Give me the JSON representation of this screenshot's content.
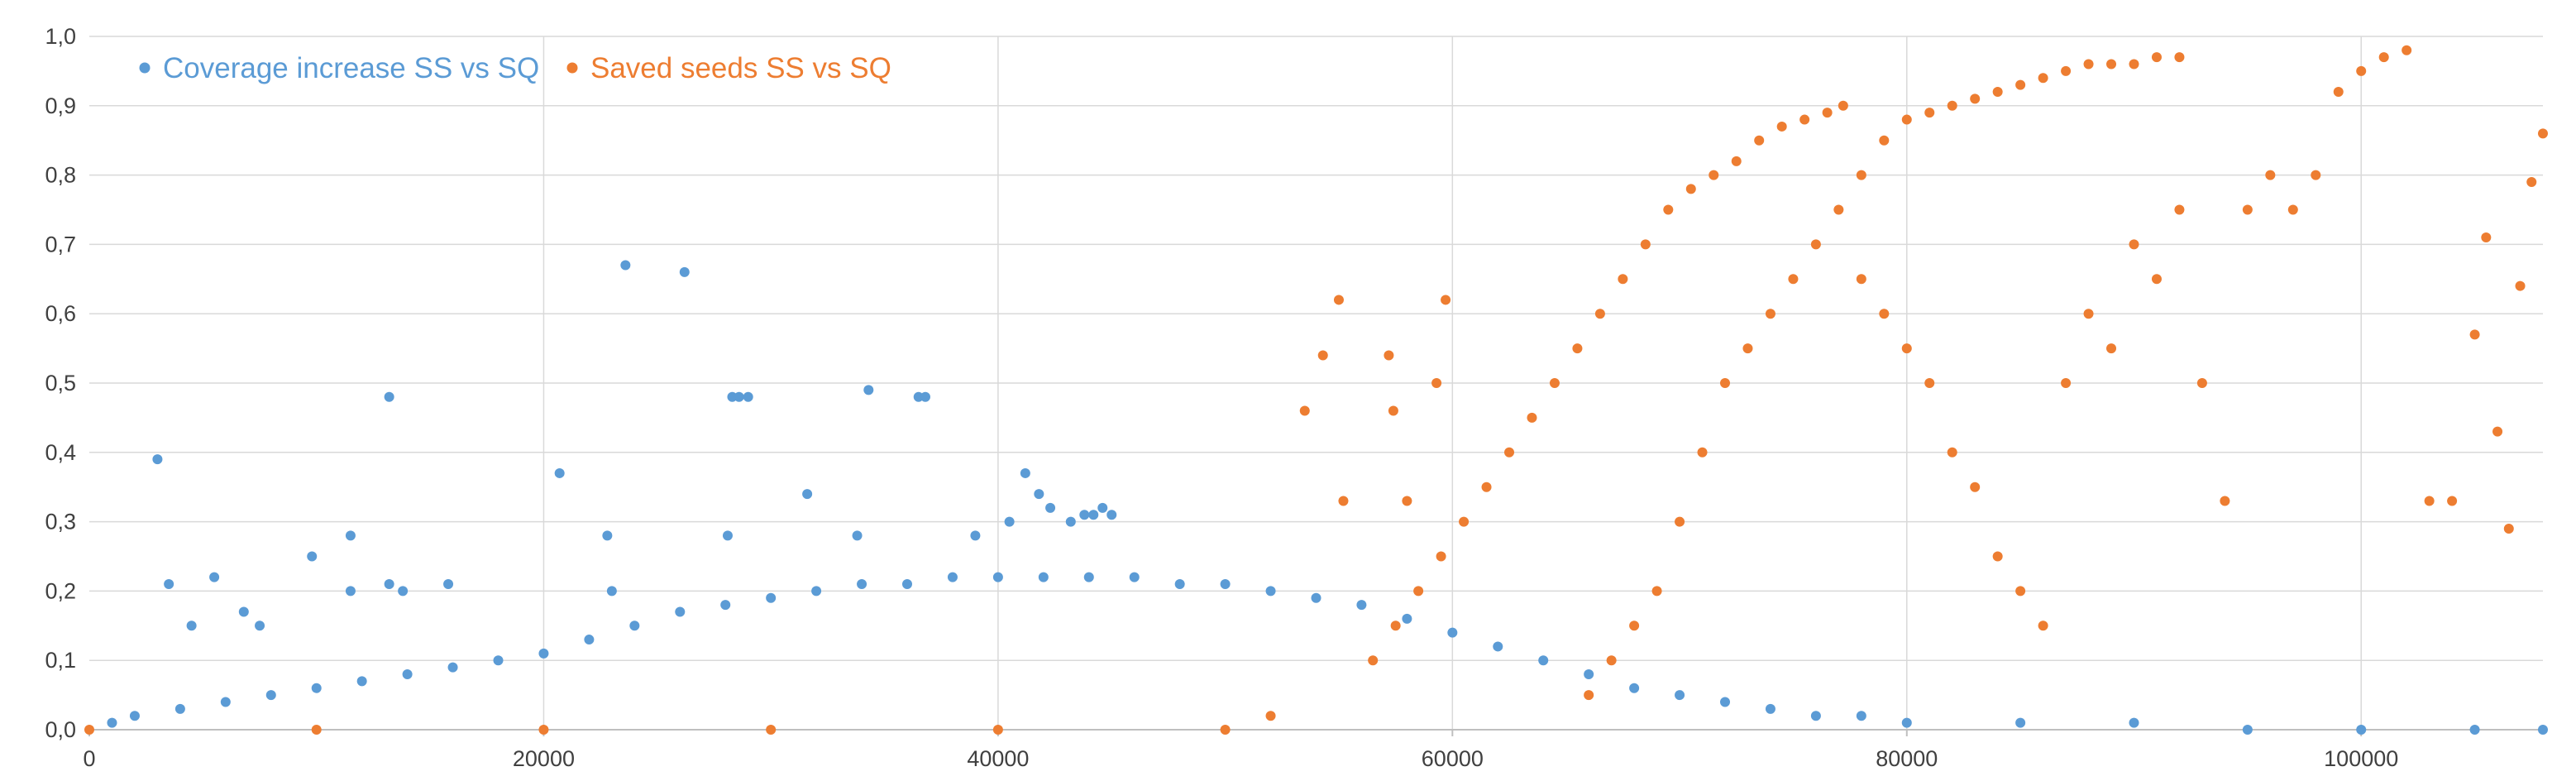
{
  "chart_data": {
    "type": "scatter",
    "title": "",
    "xlabel": "",
    "ylabel": "",
    "xlim": [
      0,
      108000
    ],
    "ylim": [
      0,
      1
    ],
    "grid": true,
    "legend_position": "top-left",
    "x_ticks": [
      {
        "value": 0,
        "label": "0"
      },
      {
        "value": 20000,
        "label": "20000"
      },
      {
        "value": 40000,
        "label": "40000"
      },
      {
        "value": 60000,
        "label": "60000"
      },
      {
        "value": 80000,
        "label": "80000"
      },
      {
        "value": 100000,
        "label": "100000"
      }
    ],
    "y_ticks": [
      {
        "value": 0.0,
        "label": "0,0"
      },
      {
        "value": 0.1,
        "label": "0,1"
      },
      {
        "value": 0.2,
        "label": "0,2"
      },
      {
        "value": 0.3,
        "label": "0,3"
      },
      {
        "value": 0.4,
        "label": "0,4"
      },
      {
        "value": 0.5,
        "label": "0,5"
      },
      {
        "value": 0.6,
        "label": "0,6"
      },
      {
        "value": 0.7,
        "label": "0,7"
      },
      {
        "value": 0.8,
        "label": "0,8"
      },
      {
        "value": 0.9,
        "label": "0,9"
      },
      {
        "value": 1.0,
        "label": "1,0"
      }
    ],
    "series": [
      {
        "name": "Coverage increase SS vs SQ",
        "color": "#5B9BD5",
        "points": [
          [
            3000,
            0.39
          ],
          [
            3500,
            0.21
          ],
          [
            4500,
            0.15
          ],
          [
            5500,
            0.22
          ],
          [
            6800,
            0.17
          ],
          [
            7500,
            0.15
          ],
          [
            9800,
            0.25
          ],
          [
            11500,
            0.28
          ],
          [
            11500,
            0.2
          ],
          [
            13200,
            0.48
          ],
          [
            13200,
            0.21
          ],
          [
            13800,
            0.2
          ],
          [
            15800,
            0.21
          ],
          [
            20700,
            0.37
          ],
          [
            22800,
            0.28
          ],
          [
            23000,
            0.2
          ],
          [
            23600,
            0.67
          ],
          [
            26200,
            0.66
          ],
          [
            28100,
            0.28
          ],
          [
            28300,
            0.48
          ],
          [
            28600,
            0.48
          ],
          [
            29000,
            0.48
          ],
          [
            31600,
            0.34
          ],
          [
            33800,
            0.28
          ],
          [
            34300,
            0.49
          ],
          [
            36500,
            0.48
          ],
          [
            36800,
            0.48
          ],
          [
            39000,
            0.28
          ],
          [
            40500,
            0.3
          ],
          [
            41200,
            0.37
          ],
          [
            41800,
            0.34
          ],
          [
            42300,
            0.32
          ],
          [
            43200,
            0.3
          ],
          [
            43800,
            0.31
          ],
          [
            44200,
            0.31
          ],
          [
            44600,
            0.32
          ],
          [
            45000,
            0.31
          ],
          [
            1000,
            0.01
          ],
          [
            2000,
            0.02
          ],
          [
            4000,
            0.03
          ],
          [
            6000,
            0.04
          ],
          [
            8000,
            0.05
          ],
          [
            10000,
            0.06
          ],
          [
            12000,
            0.07
          ],
          [
            14000,
            0.08
          ],
          [
            16000,
            0.09
          ],
          [
            18000,
            0.1
          ],
          [
            20000,
            0.11
          ],
          [
            22000,
            0.13
          ],
          [
            24000,
            0.15
          ],
          [
            26000,
            0.17
          ],
          [
            28000,
            0.18
          ],
          [
            30000,
            0.19
          ],
          [
            32000,
            0.2
          ],
          [
            34000,
            0.21
          ],
          [
            36000,
            0.21
          ],
          [
            38000,
            0.22
          ],
          [
            40000,
            0.22
          ],
          [
            42000,
            0.22
          ],
          [
            44000,
            0.22
          ],
          [
            46000,
            0.22
          ],
          [
            48000,
            0.21
          ],
          [
            50000,
            0.21
          ],
          [
            52000,
            0.2
          ],
          [
            54000,
            0.19
          ],
          [
            56000,
            0.18
          ],
          [
            58000,
            0.16
          ],
          [
            60000,
            0.14
          ],
          [
            62000,
            0.12
          ],
          [
            64000,
            0.1
          ],
          [
            66000,
            0.08
          ],
          [
            68000,
            0.06
          ],
          [
            70000,
            0.05
          ],
          [
            72000,
            0.04
          ],
          [
            74000,
            0.03
          ],
          [
            76000,
            0.02
          ],
          [
            78000,
            0.02
          ],
          [
            80000,
            0.01
          ],
          [
            85000,
            0.01
          ],
          [
            90000,
            0.01
          ],
          [
            95000,
            0.0
          ],
          [
            100000,
            0.0
          ],
          [
            105000,
            0.0
          ],
          [
            108000,
            0.0
          ]
        ]
      },
      {
        "name": "Saved seeds SS vs SQ",
        "color": "#ED7D31",
        "points": [
          [
            0,
            0.0
          ],
          [
            10000,
            0.0
          ],
          [
            20000,
            0.0
          ],
          [
            30000,
            0.0
          ],
          [
            40000,
            0.0
          ],
          [
            50000,
            0.0
          ],
          [
            52000,
            0.02
          ],
          [
            53500,
            0.46
          ],
          [
            54300,
            0.54
          ],
          [
            55000,
            0.62
          ],
          [
            55200,
            0.33
          ],
          [
            57200,
            0.54
          ],
          [
            57400,
            0.46
          ],
          [
            58000,
            0.33
          ],
          [
            59300,
            0.5
          ],
          [
            59700,
            0.62
          ],
          [
            56500,
            0.1
          ],
          [
            57500,
            0.15
          ],
          [
            58500,
            0.2
          ],
          [
            59500,
            0.25
          ],
          [
            60500,
            0.3
          ],
          [
            61500,
            0.35
          ],
          [
            62500,
            0.4
          ],
          [
            63500,
            0.45
          ],
          [
            64500,
            0.5
          ],
          [
            65500,
            0.55
          ],
          [
            66500,
            0.6
          ],
          [
            67500,
            0.65
          ],
          [
            68500,
            0.7
          ],
          [
            69500,
            0.75
          ],
          [
            70500,
            0.78
          ],
          [
            71500,
            0.8
          ],
          [
            72500,
            0.82
          ],
          [
            73500,
            0.85
          ],
          [
            74500,
            0.87
          ],
          [
            75500,
            0.88
          ],
          [
            76500,
            0.89
          ],
          [
            77200,
            0.9
          ],
          [
            66000,
            0.05
          ],
          [
            67000,
            0.1
          ],
          [
            68000,
            0.15
          ],
          [
            69000,
            0.2
          ],
          [
            70000,
            0.3
          ],
          [
            71000,
            0.4
          ],
          [
            72000,
            0.5
          ],
          [
            73000,
            0.55
          ],
          [
            74000,
            0.6
          ],
          [
            75000,
            0.65
          ],
          [
            76000,
            0.7
          ],
          [
            77000,
            0.75
          ],
          [
            78000,
            0.8
          ],
          [
            79000,
            0.85
          ],
          [
            80000,
            0.88
          ],
          [
            81000,
            0.89
          ],
          [
            82000,
            0.9
          ],
          [
            83000,
            0.91
          ],
          [
            84000,
            0.92
          ],
          [
            85000,
            0.93
          ],
          [
            86000,
            0.94
          ],
          [
            87000,
            0.95
          ],
          [
            88000,
            0.96
          ],
          [
            89000,
            0.96
          ],
          [
            90000,
            0.96
          ],
          [
            91000,
            0.97
          ],
          [
            92000,
            0.97
          ],
          [
            78000,
            0.65
          ],
          [
            79000,
            0.6
          ],
          [
            80000,
            0.55
          ],
          [
            81000,
            0.5
          ],
          [
            82000,
            0.4
          ],
          [
            83000,
            0.35
          ],
          [
            84000,
            0.25
          ],
          [
            85000,
            0.2
          ],
          [
            86000,
            0.15
          ],
          [
            87000,
            0.5
          ],
          [
            88000,
            0.6
          ],
          [
            89000,
            0.55
          ],
          [
            90000,
            0.7
          ],
          [
            91000,
            0.65
          ],
          [
            92000,
            0.75
          ],
          [
            93000,
            0.5
          ],
          [
            94000,
            0.33
          ],
          [
            95000,
            0.75
          ],
          [
            96000,
            0.8
          ],
          [
            97000,
            0.75
          ],
          [
            98000,
            0.8
          ],
          [
            99000,
            0.92
          ],
          [
            100000,
            0.95
          ],
          [
            101000,
            0.97
          ],
          [
            102000,
            0.98
          ],
          [
            103000,
            0.33
          ],
          [
            104000,
            0.33
          ],
          [
            105000,
            0.57
          ],
          [
            105500,
            0.71
          ],
          [
            106000,
            0.43
          ],
          [
            106500,
            0.29
          ],
          [
            107000,
            0.64
          ],
          [
            107500,
            0.79
          ],
          [
            108000,
            0.86
          ]
        ]
      }
    ]
  }
}
